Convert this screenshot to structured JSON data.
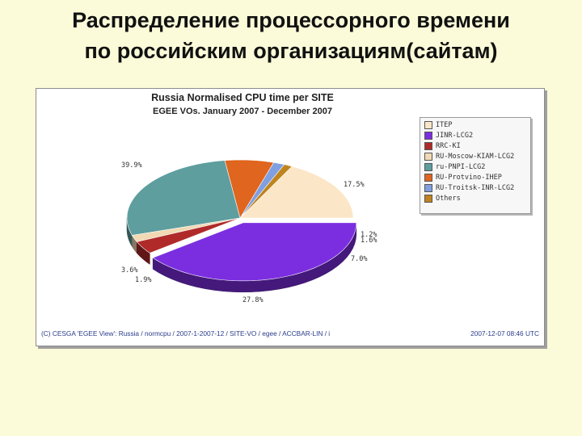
{
  "slide": {
    "title_line1": "Распределение процессорного времени",
    "title_line2": "по российским организациям(сайтам)"
  },
  "chart_data": {
    "type": "pie",
    "title": "Russia Normalised CPU time per SITE",
    "subtitle": "EGEE VOs. January 2007 - December 2007",
    "slices": [
      {
        "name": "ITEP",
        "value": 17.5,
        "label": "17.5%",
        "color": "#fbe6c8"
      },
      {
        "name": "Others",
        "value": 1.2,
        "label": "1.2%",
        "color": "#c0841e"
      },
      {
        "name": "RU-Troitsk-INR-LCG2",
        "value": 1.6,
        "label": "1.6%",
        "color": "#7f9fe0"
      },
      {
        "name": "RU-Protvino-IHEP",
        "value": 7.0,
        "label": "7.0%",
        "color": "#e0651e"
      },
      {
        "name": "ru-PNPI-LCG2",
        "value": 27.8,
        "label": "27.8%",
        "color": "#5e9e9e"
      },
      {
        "name": "RU-Moscow-KIAM-LCG2",
        "value": 1.9,
        "label": "1.9%",
        "color": "#f1d9b4"
      },
      {
        "name": "RRC-KI",
        "value": 3.6,
        "label": "3.6%",
        "color": "#b02a2a"
      },
      {
        "name": "JINR-LCG2",
        "value": 39.9,
        "label": "39.9%",
        "color": "#7b2ee0"
      }
    ],
    "legend": [
      {
        "name": "ITEP",
        "color": "#fbe6c8"
      },
      {
        "name": "JINR-LCG2",
        "color": "#7b2ee0"
      },
      {
        "name": "RRC-KI",
        "color": "#b02a2a"
      },
      {
        "name": "RU-Moscow-KIAM-LCG2",
        "color": "#f1d9b4"
      },
      {
        "name": "ru-PNPI-LCG2",
        "color": "#5e9e9e"
      },
      {
        "name": "RU-Protvino-IHEP",
        "color": "#e0651e"
      },
      {
        "name": "RU-Troitsk-INR-LCG2",
        "color": "#7f9fe0"
      },
      {
        "name": "Others",
        "color": "#c0841e"
      }
    ],
    "legend_position": "top-right"
  },
  "footer": {
    "left": "(C) CESGA 'EGEE View': Russia / normcpu / 2007-1-2007-12 / SITE-VO / egee / ACCBAR-LIN / i",
    "right": "2007-12-07 08:46 UTC"
  }
}
